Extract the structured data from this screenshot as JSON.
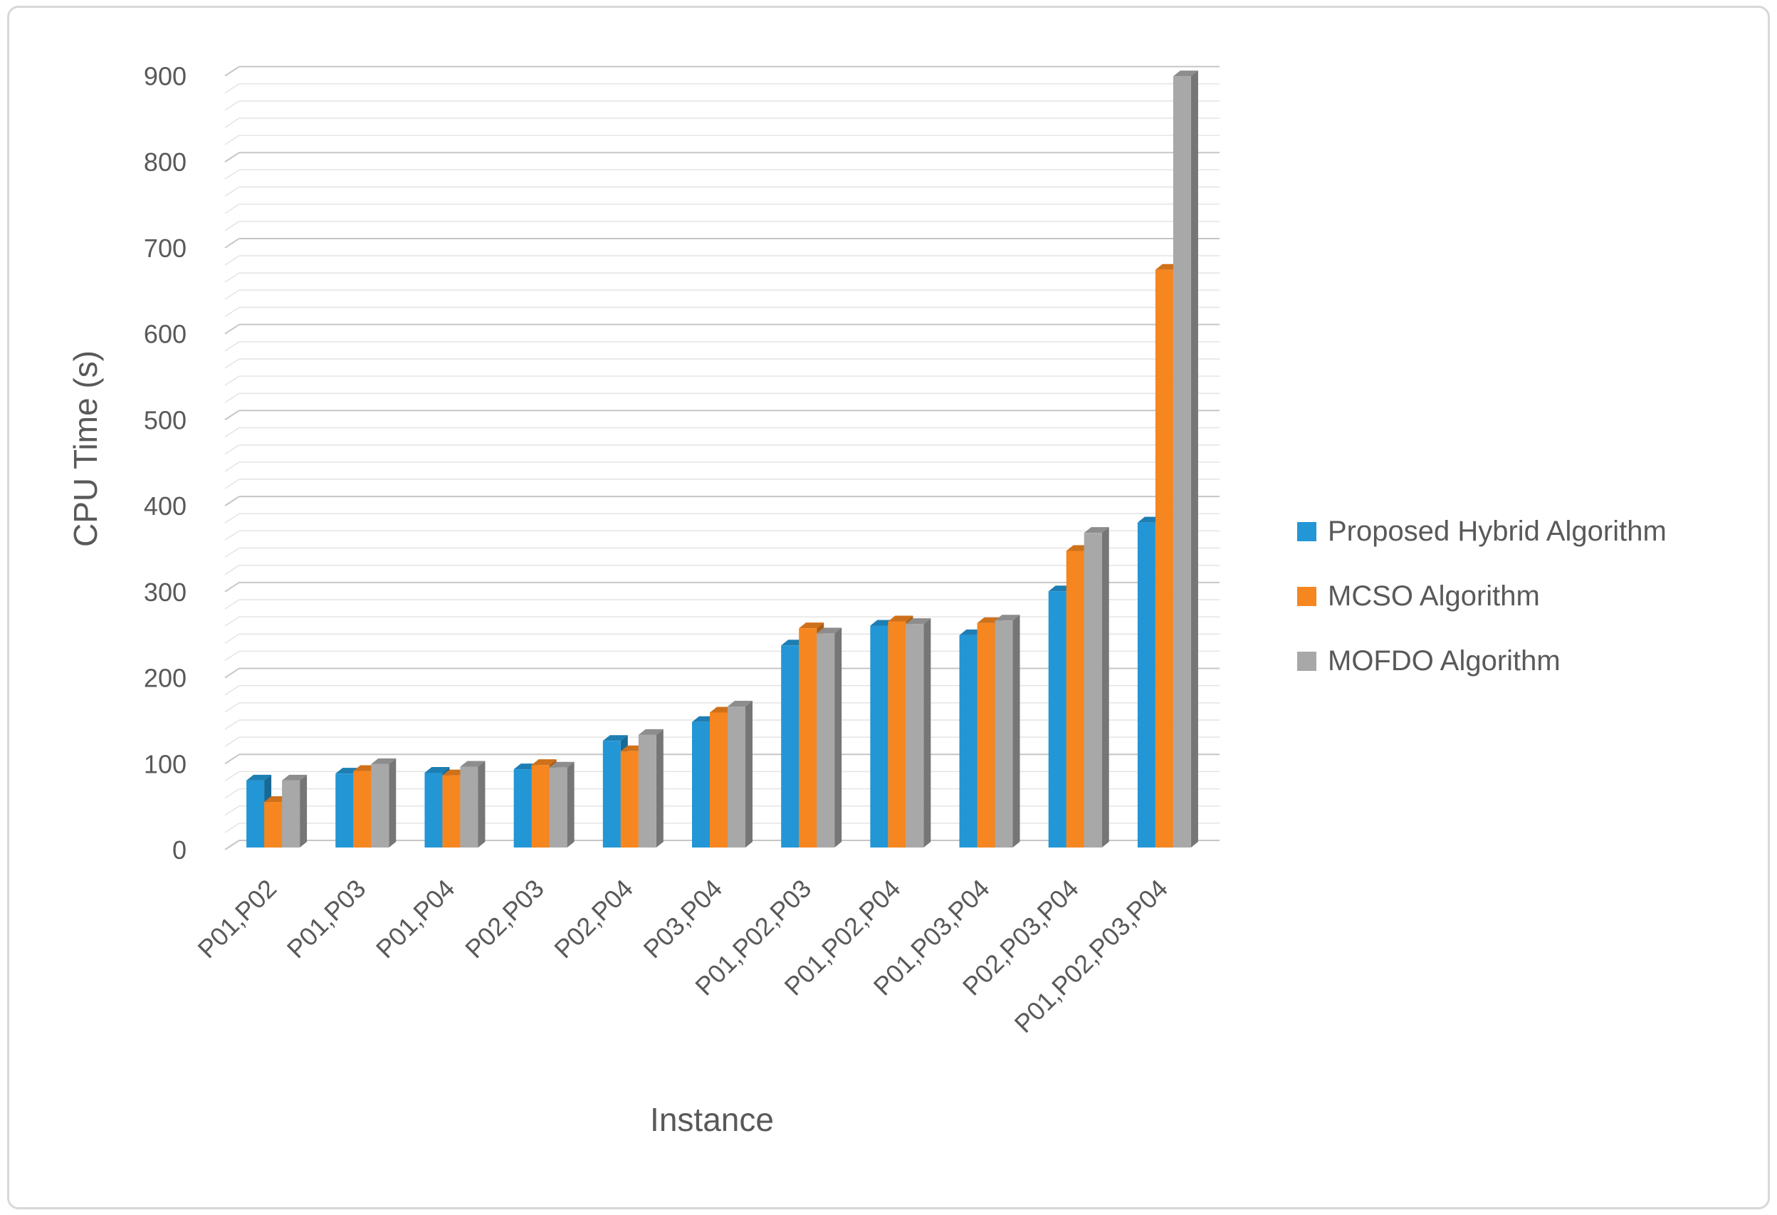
{
  "figure": {
    "background": "#ffffff",
    "border_color": "#d8d8d8"
  },
  "colors": {
    "text": "#595959",
    "grid_minor": "#e4e4e4",
    "grid_major": "#c6c6c6"
  },
  "chart_data": {
    "type": "bar",
    "style": "3d-clustered-column",
    "title": "",
    "xlabel": "Instance",
    "ylabel": "CPU Time (s)",
    "ylim": [
      0,
      900
    ],
    "y_major_step": 100,
    "y_minor_step": 20,
    "y_ticks": [
      0,
      100,
      200,
      300,
      400,
      500,
      600,
      700,
      800,
      900
    ],
    "grid": true,
    "legend_position": "right",
    "categories": [
      "P01,P02",
      "P01,P03",
      "P01,P04",
      "P02,P03",
      "P02,P04",
      "P03,P04",
      "P01,P02,P03",
      "P01,P02,P04",
      "P01,P03,P04",
      "P02,P03,P04",
      "P01,P02,P03,P04"
    ],
    "series": [
      {
        "name": "Proposed Hybrid Algorithm",
        "color": "#2396d5",
        "values": [
          78,
          86,
          87,
          91,
          124,
          146,
          235,
          258,
          247,
          298,
          378
        ]
      },
      {
        "name": "MCSO Algorithm",
        "color": "#f6861f",
        "values": [
          53,
          89,
          84,
          96,
          112,
          157,
          255,
          263,
          261,
          345,
          672
        ]
      },
      {
        "name": "MOFDO Algorithm",
        "color": "#a8a8a8",
        "values": [
          78,
          97,
          94,
          93,
          131,
          164,
          249,
          260,
          264,
          366,
          897
        ]
      }
    ]
  }
}
